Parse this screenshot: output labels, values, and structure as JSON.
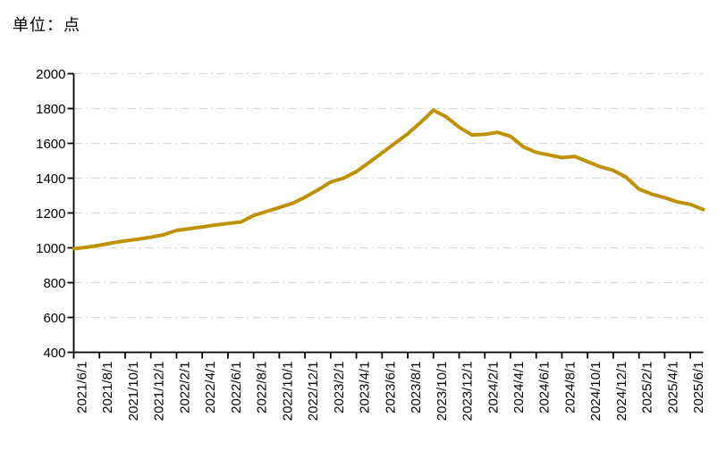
{
  "chart_data": {
    "type": "line",
    "unit_label": "单位：点",
    "title": "",
    "xlabel": "",
    "ylabel": "",
    "legend": "none",
    "grid": "horizontal dash-dot",
    "line_color": "#BF9000",
    "grid_color": "#D9D9D9",
    "axis_color": "#000000",
    "ylim": [
      400,
      2000
    ],
    "y_ticks": [
      400,
      600,
      800,
      1000,
      1200,
      1400,
      1600,
      1800,
      2000
    ],
    "x_tick_labels": [
      "2021/6/1",
      "2021/8/1",
      "2021/10/1",
      "2021/12/1",
      "2022/2/1",
      "2022/4/1",
      "2022/6/1",
      "2022/8/1",
      "2022/10/1",
      "2022/12/1",
      "2023/2/1",
      "2023/4/1",
      "2023/6/1",
      "2023/8/1",
      "2023/10/1",
      "2023/12/1",
      "2024/2/1",
      "2024/4/1",
      "2024/6/1",
      "2024/8/1",
      "2024/10/1",
      "2024/12/1",
      "2025/2/1",
      "2025/4/1",
      "2025/6/1"
    ],
    "x": [
      "2021/6/1",
      "2021/7/1",
      "2021/8/1",
      "2021/9/1",
      "2021/10/1",
      "2021/11/1",
      "2021/12/1",
      "2022/1/1",
      "2022/2/1",
      "2022/3/1",
      "2022/4/1",
      "2022/5/1",
      "2022/6/1",
      "2022/7/1",
      "2022/8/1",
      "2022/9/1",
      "2022/10/1",
      "2022/11/1",
      "2022/12/1",
      "2023/1/1",
      "2023/2/1",
      "2023/3/1",
      "2023/4/1",
      "2023/5/1",
      "2023/6/1",
      "2023/7/1",
      "2023/8/1",
      "2023/9/1",
      "2023/10/1",
      "2023/11/1",
      "2023/12/1",
      "2024/1/1",
      "2024/2/1",
      "2024/3/1",
      "2024/4/1",
      "2024/5/1",
      "2024/6/1",
      "2024/7/1",
      "2024/8/1",
      "2024/9/1",
      "2024/10/1",
      "2024/11/1",
      "2024/12/1",
      "2025/1/1",
      "2025/2/1",
      "2025/3/1",
      "2025/4/1",
      "2025/5/1",
      "2025/6/1",
      "2025/7/1"
    ],
    "values": [
      995,
      1003,
      1015,
      1028,
      1040,
      1049,
      1061,
      1075,
      1100,
      1110,
      1120,
      1131,
      1140,
      1148,
      1185,
      1208,
      1232,
      1255,
      1290,
      1332,
      1378,
      1400,
      1438,
      1490,
      1545,
      1600,
      1655,
      1720,
      1790,
      1752,
      1693,
      1648,
      1652,
      1663,
      1640,
      1580,
      1548,
      1533,
      1518,
      1525,
      1495,
      1465,
      1445,
      1405,
      1337,
      1308,
      1288,
      1263,
      1250,
      1220
    ]
  }
}
